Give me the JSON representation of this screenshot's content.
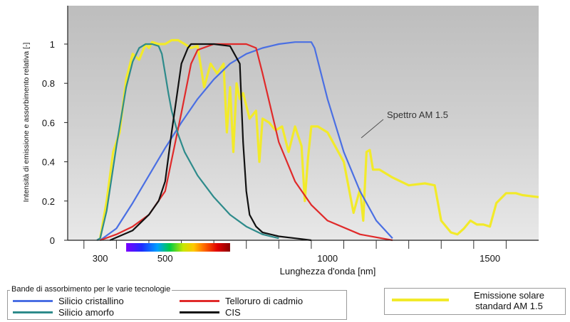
{
  "chart_data": {
    "type": "line",
    "xlabel": "Lunghezza d'onda [nm]",
    "ylabel": "Intensità di emissione e assorbimento relativa [-]",
    "xlim": [
      200,
      1650
    ],
    "ylim": [
      0,
      1.1
    ],
    "x_ticks": [
      300,
      500,
      1000,
      1500
    ],
    "y_ticks": [
      0,
      0.2,
      0.4,
      0.6,
      0.8,
      1
    ],
    "y_tick_labels": [
      "0",
      "0.2",
      "0.4",
      "0.6",
      "0.8",
      "1"
    ],
    "grid": false,
    "visible_spectrum_bar": [
      380,
      700
    ],
    "annotation": "Spettro AM 1.5",
    "series": [
      {
        "name": "Silicio cristallino",
        "color": "#4a6fe3",
        "x": [
          300,
          350,
          400,
          450,
          500,
          550,
          600,
          650,
          700,
          750,
          800,
          850,
          900,
          950,
          960,
          980,
          1000,
          1050,
          1100,
          1150,
          1200
        ],
        "y": [
          0,
          0.06,
          0.19,
          0.33,
          0.47,
          0.6,
          0.72,
          0.82,
          0.9,
          0.95,
          0.98,
          1.0,
          1.01,
          1.01,
          0.98,
          0.85,
          0.72,
          0.45,
          0.25,
          0.1,
          0.01
        ]
      },
      {
        "name": "Silicio amorfo",
        "color": "#2e8b8b",
        "x": [
          290,
          300,
          320,
          350,
          380,
          400,
          420,
          440,
          460,
          480,
          490,
          500,
          510,
          520,
          540,
          560,
          600,
          650,
          700,
          750,
          800,
          850
        ],
        "y": [
          0,
          0.01,
          0.15,
          0.48,
          0.78,
          0.91,
          0.98,
          1.0,
          1.0,
          0.99,
          0.95,
          0.85,
          0.75,
          0.66,
          0.54,
          0.45,
          0.33,
          0.22,
          0.13,
          0.07,
          0.03,
          0.01
        ]
      },
      {
        "name": "Telloruro di cadmio",
        "color": "#e02a2a",
        "x": [
          300,
          350,
          400,
          450,
          500,
          550,
          580,
          600,
          650,
          700,
          750,
          780,
          800,
          850,
          900,
          950,
          1000,
          1100,
          1200
        ],
        "y": [
          0,
          0.03,
          0.07,
          0.13,
          0.25,
          0.65,
          0.9,
          0.97,
          1.0,
          1.0,
          1.0,
          0.98,
          0.85,
          0.5,
          0.3,
          0.18,
          0.1,
          0.03,
          0.0
        ]
      },
      {
        "name": "CIS",
        "color": "#111111",
        "x": [
          330,
          400,
          450,
          480,
          500,
          520,
          550,
          570,
          580,
          600,
          650,
          700,
          730,
          740,
          750,
          760,
          780,
          800,
          850,
          900,
          950
        ],
        "y": [
          0,
          0.05,
          0.13,
          0.2,
          0.3,
          0.55,
          0.9,
          0.98,
          1.0,
          1.0,
          1.0,
          0.99,
          0.9,
          0.5,
          0.25,
          0.13,
          0.07,
          0.04,
          0.02,
          0.01,
          0.0
        ]
      },
      {
        "name": "Emissione solare standard AM 1.5",
        "color": "#f2ea2a",
        "x": [
          300,
          320,
          340,
          360,
          380,
          400,
          420,
          440,
          450,
          460,
          480,
          500,
          520,
          540,
          560,
          580,
          600,
          620,
          640,
          660,
          680,
          690,
          700,
          710,
          720,
          730,
          740,
          760,
          780,
          790,
          800,
          820,
          840,
          860,
          880,
          900,
          920,
          930,
          940,
          950,
          970,
          1000,
          1050,
          1080,
          1100,
          1110,
          1120,
          1130,
          1140,
          1160,
          1200,
          1250,
          1300,
          1330,
          1350,
          1380,
          1400,
          1420,
          1440,
          1460,
          1480,
          1500,
          1520,
          1550,
          1580,
          1600,
          1650
        ],
        "y": [
          0.01,
          0.2,
          0.45,
          0.55,
          0.82,
          0.95,
          0.92,
          1.0,
          0.98,
          1.01,
          1.0,
          1.0,
          1.02,
          1.02,
          1.0,
          0.98,
          0.99,
          0.78,
          0.9,
          0.85,
          0.9,
          0.55,
          0.78,
          0.45,
          0.8,
          0.72,
          0.75,
          0.62,
          0.66,
          0.4,
          0.62,
          0.6,
          0.56,
          0.58,
          0.45,
          0.58,
          0.48,
          0.2,
          0.42,
          0.58,
          0.58,
          0.55,
          0.4,
          0.14,
          0.26,
          0.1,
          0.45,
          0.46,
          0.36,
          0.36,
          0.32,
          0.28,
          0.29,
          0.28,
          0.1,
          0.04,
          0.03,
          0.06,
          0.1,
          0.08,
          0.08,
          0.07,
          0.19,
          0.24,
          0.24,
          0.23,
          0.22
        ]
      }
    ]
  },
  "legend": {
    "caption": "Bande di assorbimento per le varie tecnologie",
    "items": [
      {
        "label": "Silicio cristallino",
        "color": "#4a6fe3"
      },
      {
        "label": "Telloruro di cadmio",
        "color": "#e02a2a"
      },
      {
        "label": "Silicio amorfo",
        "color": "#2e8b8b"
      },
      {
        "label": "CIS",
        "color": "#111111"
      }
    ],
    "solar_line1": "Emissione solare",
    "solar_line2": "standard AM 1.5",
    "solar_color": "#f2ea2a"
  }
}
